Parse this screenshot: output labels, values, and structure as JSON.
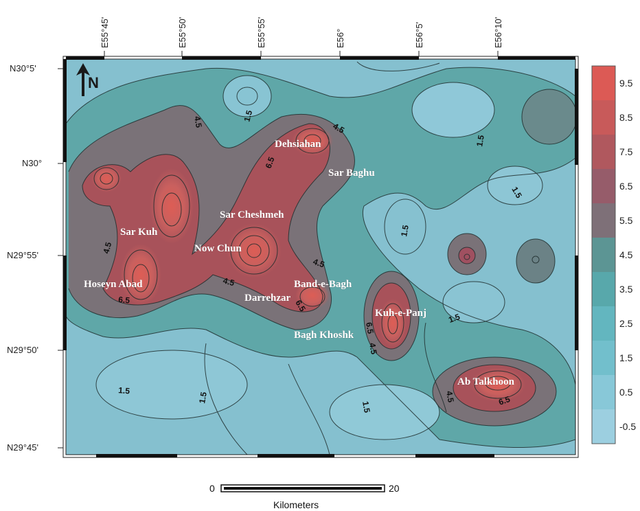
{
  "longitude_labels": [
    "E55°45'",
    "E55°50'",
    "E55°55'",
    "E56°",
    "E56°5'",
    "E56°10'"
  ],
  "latitude_labels": [
    "N30°5'",
    "N30°",
    "N29°55'",
    "N29°50'",
    "N29°45'"
  ],
  "north_arrow": "N",
  "place_names": [
    "Dehsiahan",
    "Sar Baghu",
    "Sar Kuh",
    "Sar Cheshmeh",
    "Now Chun",
    "Hoseyn Abad",
    "Band-e-Bagh",
    "Darrehzar",
    "Kuh-e-Panj",
    "Bagh Khoshk",
    "Ab Talkhoon"
  ],
  "contour_labels": [
    "4.5",
    "1.5",
    "4.5",
    "6.5",
    "1.5",
    "1.5",
    "1.5",
    "4.5",
    "6.5",
    "4.5",
    "4.5",
    "6.5",
    "6.5",
    "4.5",
    "1.5",
    "1.5",
    "1.5",
    "1.5",
    "4.5",
    "6.5"
  ],
  "legend": {
    "levels": [
      "9.5",
      "8.5",
      "7.5",
      "6.5",
      "5.5",
      "4.5",
      "3.5",
      "2.5",
      "1.5",
      "0.5",
      "-0.5"
    ],
    "colors": [
      "#dc5a55",
      "#c85a5a",
      "#b0585e",
      "#965c6a",
      "#7e7078",
      "#5c9594",
      "#58a8ab",
      "#63b6bf",
      "#72bfcc",
      "#88c8d8",
      "#9ccfe0"
    ]
  },
  "scale_bar": {
    "min": "0",
    "max": "20",
    "unit": "Kilometers"
  },
  "colors": {
    "bg_low": "#85c0cf",
    "mid": "#5b9e9c",
    "high": "#d75c55",
    "frame": "#222222"
  }
}
